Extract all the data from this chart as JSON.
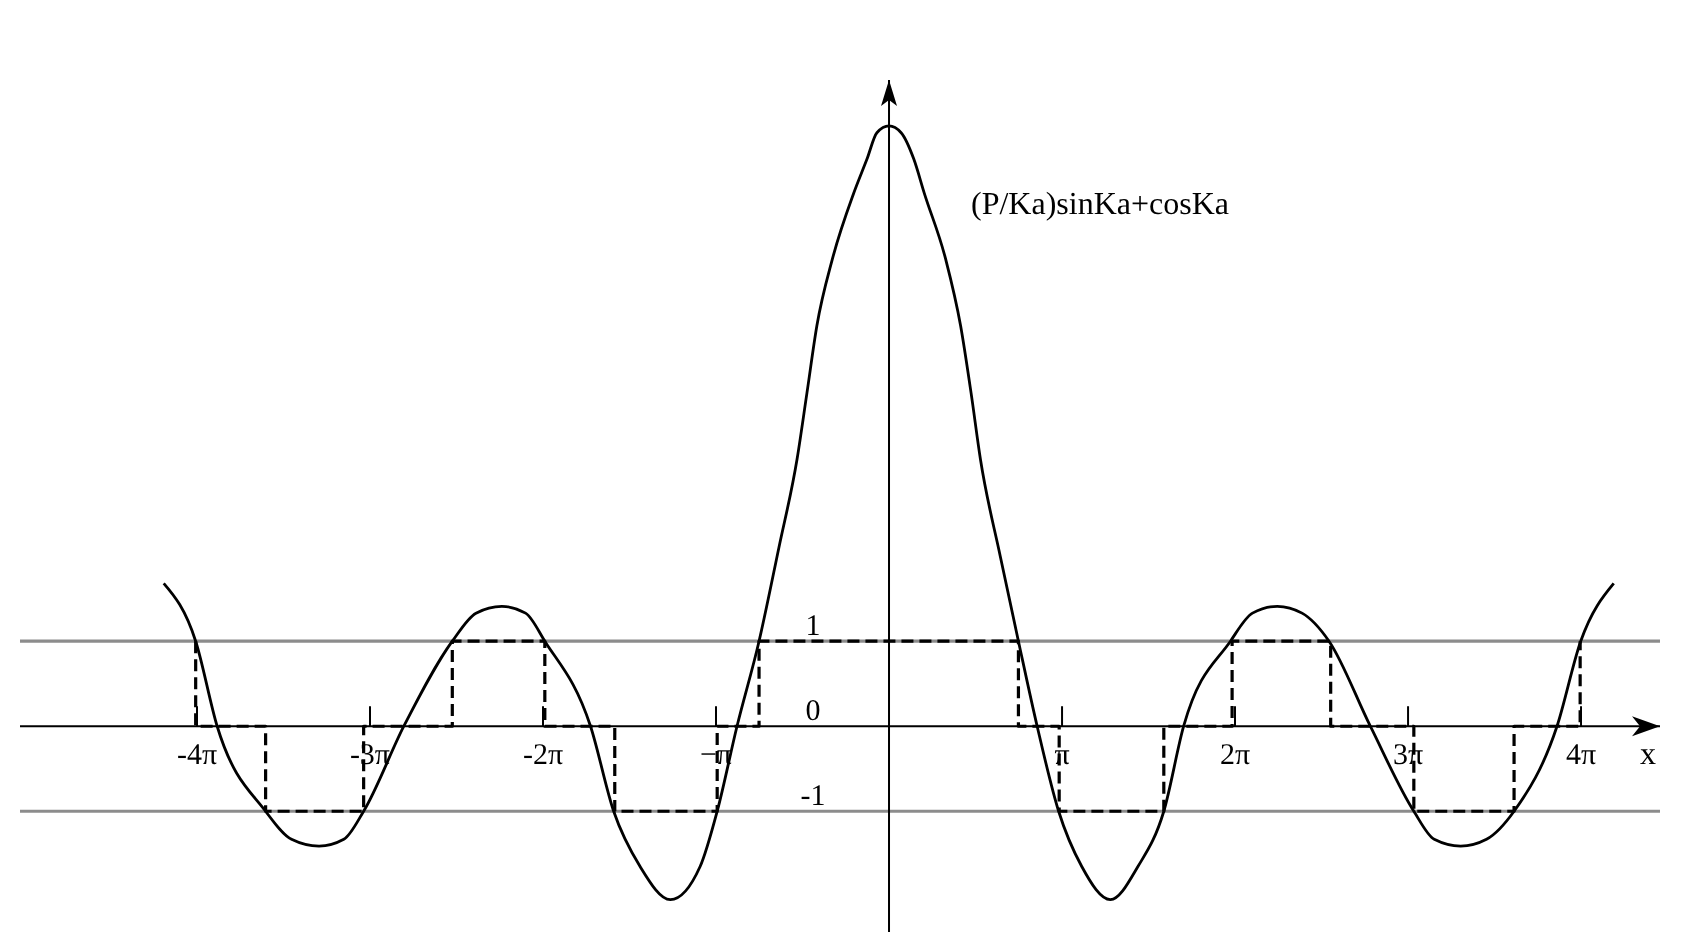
{
  "chart_data": {
    "type": "line",
    "xlabel": "x",
    "xlim": [
      -15.78,
      14.0
    ],
    "ylim": [
      -2.42,
      7.6
    ],
    "xticks": [
      {
        "value": -12.566,
        "label": "-4π"
      },
      {
        "value": -9.425,
        "label": "-3π"
      },
      {
        "value": -6.283,
        "label": "-2π"
      },
      {
        "value": -3.142,
        "label": "−π"
      },
      {
        "value": 3.142,
        "label": "π"
      },
      {
        "value": 6.283,
        "label": "2π"
      },
      {
        "value": 9.425,
        "label": "3π"
      },
      {
        "value": 12.566,
        "label": "4π"
      }
    ],
    "yticks": [
      -1,
      0,
      1
    ],
    "ref_lines": [
      {
        "axis": "y",
        "value": 1,
        "color": "#8c8c8c"
      },
      {
        "axis": "y",
        "value": -1,
        "color": "#8c8c8c"
      }
    ],
    "series": [
      {
        "name": "(P/Ka)sinKa+cosKa",
        "color": "#000000",
        "line_style": "solid",
        "x": [
          -13.17,
          -12.59,
          -12.2,
          -11.32,
          -10.85,
          -10.35,
          -9.9,
          -9.54,
          -8.81,
          -7.93,
          -7.5,
          -7.03,
          -6.6,
          -6.25,
          -5.42,
          -5.0,
          -4.52,
          -3.97,
          -3.43,
          -3.12,
          -2.76,
          -2.36,
          -2.0,
          -1.67,
          -1.49,
          -1.31,
          -1.03,
          -0.64,
          -0.4,
          -0.22,
          0,
          0.22,
          0.45,
          0.64,
          1.03,
          1.3,
          1.49,
          1.66,
          2.02,
          2.35,
          2.69,
          3.08,
          3.5,
          4.02,
          4.52,
          4.99,
          5.35,
          6.2,
          6.6,
          7.05,
          7.5,
          7.99,
          8.74,
          9.53,
          9.9,
          10.38,
          10.85,
          11.35,
          12.13,
          12.56,
          13.16
        ],
        "values": [
          1.68,
          1.0,
          0,
          -1,
          -1.33,
          -1.41,
          -1.33,
          -1,
          0,
          1,
          1.33,
          1.41,
          1.33,
          1,
          0,
          -1,
          -1.65,
          -2.04,
          -1.65,
          -1,
          0,
          1,
          2.1,
          3.14,
          3.92,
          4.71,
          5.49,
          6.27,
          6.67,
          6.98,
          7.06,
          6.98,
          6.67,
          6.27,
          5.49,
          4.71,
          3.92,
          3.14,
          2.0,
          1,
          0,
          -1,
          -1.65,
          -2.04,
          -1.65,
          -1,
          0,
          1,
          1.33,
          1.41,
          1.33,
          1,
          0,
          -1,
          -1.33,
          -1.41,
          -1.33,
          -1,
          0,
          1,
          1.68
        ]
      },
      {
        "type": "step",
        "color": "#000000",
        "line_style": "dashed",
        "x": [
          -12.59,
          -12.59,
          -11.32,
          -9.54,
          -7.93,
          -6.25,
          -4.98,
          -3.12,
          -2.36,
          2.35,
          3.09,
          4.99,
          6.23,
          8.02,
          9.53,
          11.35,
          12.55
        ],
        "values": [
          1,
          0,
          -1,
          0,
          1,
          0,
          -1,
          0,
          1,
          0,
          -1,
          0,
          1,
          0,
          -1,
          0,
          1
        ]
      }
    ]
  }
}
